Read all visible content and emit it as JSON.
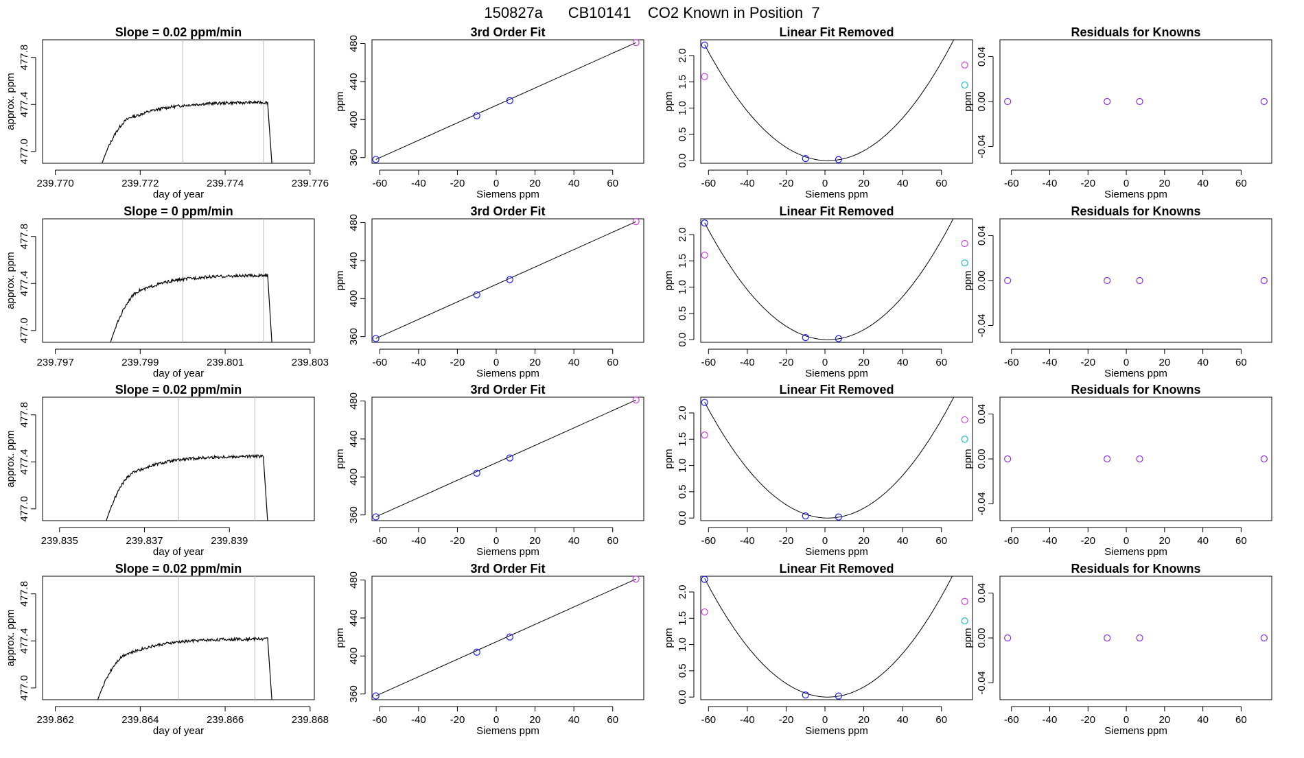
{
  "figure_title": "150827a      CB10141    CO2 Known in Position  7",
  "colors": {
    "line": "#000000",
    "blue": "#1a1aff",
    "magenta": "#cc44dd",
    "cyan": "#22bbcc",
    "purple": "#8a2be2",
    "vline": "#bbbbbb"
  },
  "chart_data": [
    {
      "id": "ts-1",
      "type": "line",
      "title": "Slope =  0.02  ppm/min",
      "xlabel": "day of year",
      "ylabel": "approx. ppm",
      "xlim": [
        239.7697,
        239.7761
      ],
      "ylim": [
        476.9,
        477.95
      ],
      "xticks": [
        239.77,
        239.772,
        239.774,
        239.776
      ],
      "xtick_labels": [
        "239.770",
        "239.772",
        "239.774",
        "239.776"
      ],
      "yticks": [
        477.0,
        477.4,
        477.8
      ],
      "ytick_labels": [
        "477.0",
        "477.4",
        "477.8"
      ],
      "vlines": [
        239.773,
        239.7749
      ],
      "trace": {
        "start": 239.7711,
        "rise_end": 239.7719,
        "plateau_end": 239.775,
        "stop": 239.7751,
        "base": 476.9,
        "level": 477.42
      }
    },
    {
      "id": "fit3-1",
      "type": "scatter",
      "title": "3rd Order Fit",
      "xlabel": "Siemens ppm",
      "ylabel": "ppm",
      "xlim": [
        -64,
        76
      ],
      "ylim": [
        354,
        484
      ],
      "xticks": [
        -60,
        -40,
        -20,
        0,
        20,
        40,
        60
      ],
      "xtick_labels": [
        "-60",
        "-40",
        "-20",
        "0",
        "20",
        "40",
        "60"
      ],
      "yticks": [
        360,
        400,
        440,
        480
      ],
      "ytick_labels": [
        "360",
        "400",
        "440",
        "480"
      ],
      "points": [
        {
          "x": -62,
          "y": 358,
          "c": "blue"
        },
        {
          "x": -10,
          "y": 404,
          "c": "blue"
        },
        {
          "x": 7,
          "y": 420,
          "c": "blue"
        },
        {
          "x": 72,
          "y": 481,
          "c": "magenta"
        }
      ],
      "fit_line": {
        "x": [
          -62,
          72
        ],
        "y": [
          358,
          481
        ]
      }
    },
    {
      "id": "lin-1",
      "type": "scatter",
      "title": "Linear Fit Removed",
      "xlabel": "Siemens ppm",
      "ylabel": "ppm",
      "xlim": [
        -64,
        76
      ],
      "ylim": [
        -0.05,
        2.3
      ],
      "xticks": [
        -60,
        -40,
        -20,
        0,
        20,
        40,
        60
      ],
      "xtick_labels": [
        "-60",
        "-40",
        "-20",
        "0",
        "20",
        "40",
        "60"
      ],
      "yticks": [
        0,
        0.5,
        1,
        1.5,
        2
      ],
      "ytick_labels": [
        "0.0",
        "0.5",
        "1.0",
        "1.5",
        "2.0"
      ],
      "points": [
        {
          "x": -62,
          "y": 2.2,
          "c": "blue"
        },
        {
          "x": -62,
          "y": 1.6,
          "c": "magenta"
        },
        {
          "x": -10,
          "y": 0.04,
          "c": "blue"
        },
        {
          "x": 7,
          "y": 0.02,
          "c": "blue"
        },
        {
          "x": 72,
          "y": 1.82,
          "c": "magenta"
        },
        {
          "x": 72,
          "y": 1.44,
          "c": "cyan"
        }
      ],
      "fit_curve": {
        "type": "quadratic",
        "x_min": -62,
        "x_max": 72,
        "vertex_x": 1.5,
        "vertex_y": 0.0,
        "a": 0.000547
      }
    },
    {
      "id": "res-1",
      "type": "scatter",
      "title": "Residuals for Knowns",
      "xlabel": "Siemens ppm",
      "ylabel": "ppm",
      "xlim": [
        -66,
        76
      ],
      "ylim": [
        -0.055,
        0.055
      ],
      "xticks": [
        -60,
        -40,
        -20,
        0,
        20,
        40,
        60
      ],
      "xtick_labels": [
        "-60",
        "-40",
        "-20",
        "0",
        "20",
        "40",
        "60"
      ],
      "yticks": [
        -0.04,
        0,
        0.04
      ],
      "ytick_labels": [
        "-0.04",
        "0.00",
        "0.04"
      ],
      "points": [
        {
          "x": -62,
          "y": 0,
          "c": "purple"
        },
        {
          "x": -10,
          "y": 0,
          "c": "purple"
        },
        {
          "x": 7,
          "y": 0,
          "c": "purple"
        },
        {
          "x": 72,
          "y": 0,
          "c": "purple"
        }
      ]
    },
    {
      "id": "ts-2",
      "type": "line",
      "title": "Slope =  0  ppm/min",
      "xlabel": "day of year",
      "ylabel": "approx. ppm",
      "xlim": [
        239.7967,
        239.8031
      ],
      "ylim": [
        476.9,
        477.95
      ],
      "xticks": [
        239.797,
        239.799,
        239.801,
        239.803
      ],
      "xtick_labels": [
        "239.797",
        "239.799",
        "239.801",
        "239.803"
      ],
      "yticks": [
        477.0,
        477.4,
        477.8
      ],
      "ytick_labels": [
        "477.0",
        "477.4",
        "477.8"
      ],
      "vlines": [
        239.8,
        239.8019
      ],
      "trace": {
        "start": 239.7983,
        "rise_end": 239.7991,
        "plateau_end": 239.802,
        "stop": 239.8021,
        "base": 476.9,
        "level": 477.47
      }
    },
    {
      "id": "fit3-2",
      "type": "scatter",
      "title": "3rd Order Fit",
      "xlabel": "Siemens ppm",
      "ylabel": "ppm",
      "xlim": [
        -64,
        76
      ],
      "ylim": [
        354,
        484
      ],
      "xticks": [
        -60,
        -40,
        -20,
        0,
        20,
        40,
        60
      ],
      "xtick_labels": [
        "-60",
        "-40",
        "-20",
        "0",
        "20",
        "40",
        "60"
      ],
      "yticks": [
        360,
        400,
        440,
        480
      ],
      "ytick_labels": [
        "360",
        "400",
        "440",
        "480"
      ],
      "points": [
        {
          "x": -62,
          "y": 358,
          "c": "blue"
        },
        {
          "x": -10,
          "y": 404,
          "c": "blue"
        },
        {
          "x": 7,
          "y": 420,
          "c": "blue"
        },
        {
          "x": 72,
          "y": 481,
          "c": "magenta"
        }
      ],
      "fit_line": {
        "x": [
          -62,
          72
        ],
        "y": [
          358,
          481
        ]
      }
    },
    {
      "id": "lin-2",
      "type": "scatter",
      "title": "Linear Fit Removed",
      "xlabel": "Siemens ppm",
      "ylabel": "ppm",
      "xlim": [
        -64,
        76
      ],
      "ylim": [
        -0.05,
        2.3
      ],
      "xticks": [
        -60,
        -40,
        -20,
        0,
        20,
        40,
        60
      ],
      "xtick_labels": [
        "-60",
        "-40",
        "-20",
        "0",
        "20",
        "40",
        "60"
      ],
      "yticks": [
        0,
        0.5,
        1,
        1.5,
        2
      ],
      "ytick_labels": [
        "0.0",
        "0.5",
        "1.0",
        "1.5",
        "2.0"
      ],
      "points": [
        {
          "x": -62,
          "y": 2.22,
          "c": "blue"
        },
        {
          "x": -62,
          "y": 1.61,
          "c": "magenta"
        },
        {
          "x": -10,
          "y": 0.04,
          "c": "blue"
        },
        {
          "x": 7,
          "y": 0.02,
          "c": "blue"
        },
        {
          "x": 72,
          "y": 1.83,
          "c": "magenta"
        },
        {
          "x": 72,
          "y": 1.46,
          "c": "cyan"
        }
      ],
      "fit_curve": {
        "type": "quadratic",
        "x_min": -62,
        "x_max": 72,
        "vertex_x": 1.5,
        "vertex_y": 0.0,
        "a": 0.000552
      }
    },
    {
      "id": "res-2",
      "type": "scatter",
      "title": "Residuals for Knowns",
      "xlabel": "Siemens ppm",
      "ylabel": "ppm",
      "xlim": [
        -66,
        76
      ],
      "ylim": [
        -0.055,
        0.055
      ],
      "xticks": [
        -60,
        -40,
        -20,
        0,
        20,
        40,
        60
      ],
      "xtick_labels": [
        "-60",
        "-40",
        "-20",
        "0",
        "20",
        "40",
        "60"
      ],
      "yticks": [
        -0.04,
        0,
        0.04
      ],
      "ytick_labels": [
        "-0.04",
        "0.00",
        "0.04"
      ],
      "points": [
        {
          "x": -62,
          "y": 0,
          "c": "purple"
        },
        {
          "x": -10,
          "y": 0,
          "c": "purple"
        },
        {
          "x": 7,
          "y": 0,
          "c": "purple"
        },
        {
          "x": 72,
          "y": 0,
          "c": "purple"
        }
      ]
    },
    {
      "id": "ts-3",
      "type": "line",
      "title": "Slope =  0.02  ppm/min",
      "xlabel": "day of year",
      "ylabel": "approx. ppm",
      "xlim": [
        239.8346,
        239.841
      ],
      "ylim": [
        476.9,
        477.95
      ],
      "xticks": [
        239.835,
        239.837,
        239.839
      ],
      "xtick_labels": [
        "239.835",
        "239.837",
        "239.839"
      ],
      "yticks": [
        477.0,
        477.4,
        477.8
      ],
      "ytick_labels": [
        "477.0",
        "477.4",
        "477.8"
      ],
      "vlines": [
        239.8378,
        239.8396
      ],
      "trace": {
        "start": 239.8361,
        "rise_end": 239.8369,
        "plateau_end": 239.8398,
        "stop": 239.8399,
        "base": 476.9,
        "level": 477.45
      }
    },
    {
      "id": "fit3-3",
      "type": "scatter",
      "title": "3rd Order Fit",
      "xlabel": "Siemens ppm",
      "ylabel": "ppm",
      "xlim": [
        -64,
        76
      ],
      "ylim": [
        354,
        484
      ],
      "xticks": [
        -60,
        -40,
        -20,
        0,
        20,
        40,
        60
      ],
      "xtick_labels": [
        "-60",
        "-40",
        "-20",
        "0",
        "20",
        "40",
        "60"
      ],
      "yticks": [
        360,
        400,
        440,
        480
      ],
      "ytick_labels": [
        "360",
        "400",
        "440",
        "480"
      ],
      "points": [
        {
          "x": -62,
          "y": 358,
          "c": "blue"
        },
        {
          "x": -10,
          "y": 404,
          "c": "blue"
        },
        {
          "x": 7,
          "y": 420,
          "c": "blue"
        },
        {
          "x": 72,
          "y": 481,
          "c": "magenta"
        }
      ],
      "fit_line": {
        "x": [
          -62,
          72
        ],
        "y": [
          358,
          481
        ]
      }
    },
    {
      "id": "lin-3",
      "type": "scatter",
      "title": "Linear Fit Removed",
      "xlabel": "Siemens ppm",
      "ylabel": "ppm",
      "xlim": [
        -64,
        76
      ],
      "ylim": [
        -0.05,
        2.3
      ],
      "xticks": [
        -60,
        -40,
        -20,
        0,
        20,
        40,
        60
      ],
      "xtick_labels": [
        "-60",
        "-40",
        "-20",
        "0",
        "20",
        "40",
        "60"
      ],
      "yticks": [
        0,
        0.5,
        1,
        1.5,
        2
      ],
      "ytick_labels": [
        "0.0",
        "0.5",
        "1.0",
        "1.5",
        "2.0"
      ],
      "points": [
        {
          "x": -62,
          "y": 2.2,
          "c": "blue"
        },
        {
          "x": -62,
          "y": 1.58,
          "c": "magenta"
        },
        {
          "x": -10,
          "y": 0.04,
          "c": "blue"
        },
        {
          "x": 7,
          "y": 0.02,
          "c": "blue"
        },
        {
          "x": 72,
          "y": 1.87,
          "c": "magenta"
        },
        {
          "x": 72,
          "y": 1.5,
          "c": "cyan"
        }
      ],
      "fit_curve": {
        "type": "quadratic",
        "x_min": -62,
        "x_max": 72,
        "vertex_x": 1.5,
        "vertex_y": 0.0,
        "a": 0.000547
      }
    },
    {
      "id": "res-3",
      "type": "scatter",
      "title": "Residuals for Knowns",
      "xlabel": "Siemens ppm",
      "ylabel": "ppm",
      "xlim": [
        -66,
        76
      ],
      "ylim": [
        -0.055,
        0.055
      ],
      "xticks": [
        -60,
        -40,
        -20,
        0,
        20,
        40,
        60
      ],
      "xtick_labels": [
        "-60",
        "-40",
        "-20",
        "0",
        "20",
        "40",
        "60"
      ],
      "yticks": [
        -0.04,
        0,
        0.04
      ],
      "ytick_labels": [
        "-0.04",
        "0.00",
        "0.04"
      ],
      "points": [
        {
          "x": -62,
          "y": 0,
          "c": "purple"
        },
        {
          "x": -10,
          "y": 0,
          "c": "purple"
        },
        {
          "x": 7,
          "y": 0,
          "c": "purple"
        },
        {
          "x": 72,
          "y": 0,
          "c": "purple"
        }
      ]
    },
    {
      "id": "ts-4",
      "type": "line",
      "title": "Slope =  0.02  ppm/min",
      "xlabel": "day of year",
      "ylabel": "approx. ppm",
      "xlim": [
        239.8617,
        239.8681
      ],
      "ylim": [
        476.9,
        477.95
      ],
      "xticks": [
        239.862,
        239.864,
        239.866,
        239.868
      ],
      "xtick_labels": [
        "239.862",
        "239.864",
        "239.866",
        "239.868"
      ],
      "yticks": [
        477.0,
        477.4,
        477.8
      ],
      "ytick_labels": [
        "477.0",
        "477.4",
        "477.8"
      ],
      "vlines": [
        239.8649,
        239.8667
      ],
      "trace": {
        "start": 239.863,
        "rise_end": 239.8638,
        "plateau_end": 239.867,
        "stop": 239.8671,
        "base": 476.9,
        "level": 477.42
      }
    },
    {
      "id": "fit3-4",
      "type": "scatter",
      "title": "3rd Order Fit",
      "xlabel": "Siemens ppm",
      "ylabel": "ppm",
      "xlim": [
        -64,
        76
      ],
      "ylim": [
        354,
        484
      ],
      "xticks": [
        -60,
        -40,
        -20,
        0,
        20,
        40,
        60
      ],
      "xtick_labels": [
        "-60",
        "-40",
        "-20",
        "0",
        "20",
        "40",
        "60"
      ],
      "yticks": [
        360,
        400,
        440,
        480
      ],
      "ytick_labels": [
        "360",
        "400",
        "440",
        "480"
      ],
      "points": [
        {
          "x": -62,
          "y": 358,
          "c": "blue"
        },
        {
          "x": -10,
          "y": 404,
          "c": "blue"
        },
        {
          "x": 7,
          "y": 420,
          "c": "blue"
        },
        {
          "x": 72,
          "y": 481,
          "c": "magenta"
        }
      ],
      "fit_line": {
        "x": [
          -62,
          72
        ],
        "y": [
          358,
          481
        ]
      }
    },
    {
      "id": "lin-4",
      "type": "scatter",
      "title": "Linear Fit Removed",
      "xlabel": "Siemens ppm",
      "ylabel": "ppm",
      "xlim": [
        -64,
        76
      ],
      "ylim": [
        -0.05,
        2.3
      ],
      "xticks": [
        -60,
        -40,
        -20,
        0,
        20,
        40,
        60
      ],
      "xtick_labels": [
        "-60",
        "-40",
        "-20",
        "0",
        "20",
        "40",
        "60"
      ],
      "yticks": [
        0,
        0.5,
        1,
        1.5,
        2
      ],
      "ytick_labels": [
        "0.0",
        "0.5",
        "1.0",
        "1.5",
        "2.0"
      ],
      "points": [
        {
          "x": -62,
          "y": 2.24,
          "c": "blue"
        },
        {
          "x": -62,
          "y": 1.62,
          "c": "magenta"
        },
        {
          "x": -10,
          "y": 0.04,
          "c": "blue"
        },
        {
          "x": 7,
          "y": 0.02,
          "c": "blue"
        },
        {
          "x": 72,
          "y": 1.82,
          "c": "magenta"
        },
        {
          "x": 72,
          "y": 1.45,
          "c": "cyan"
        }
      ],
      "fit_curve": {
        "type": "quadratic",
        "x_min": -62,
        "x_max": 72,
        "vertex_x": 1.5,
        "vertex_y": 0.0,
        "a": 0.00056
      }
    },
    {
      "id": "res-4",
      "type": "scatter",
      "title": "Residuals for Knowns",
      "xlabel": "Siemens ppm",
      "ylabel": "ppm",
      "xlim": [
        -66,
        76
      ],
      "ylim": [
        -0.055,
        0.055
      ],
      "xticks": [
        -60,
        -40,
        -20,
        0,
        20,
        40,
        60
      ],
      "xtick_labels": [
        "-60",
        "-40",
        "-20",
        "0",
        "20",
        "40",
        "60"
      ],
      "yticks": [
        -0.04,
        0,
        0.04
      ],
      "ytick_labels": [
        "-0.04",
        "0.00",
        "0.04"
      ],
      "points": [
        {
          "x": -62,
          "y": 0,
          "c": "purple"
        },
        {
          "x": -10,
          "y": 0,
          "c": "purple"
        },
        {
          "x": 7,
          "y": 0,
          "c": "purple"
        },
        {
          "x": 72,
          "y": 0,
          "c": "purple"
        }
      ]
    }
  ]
}
